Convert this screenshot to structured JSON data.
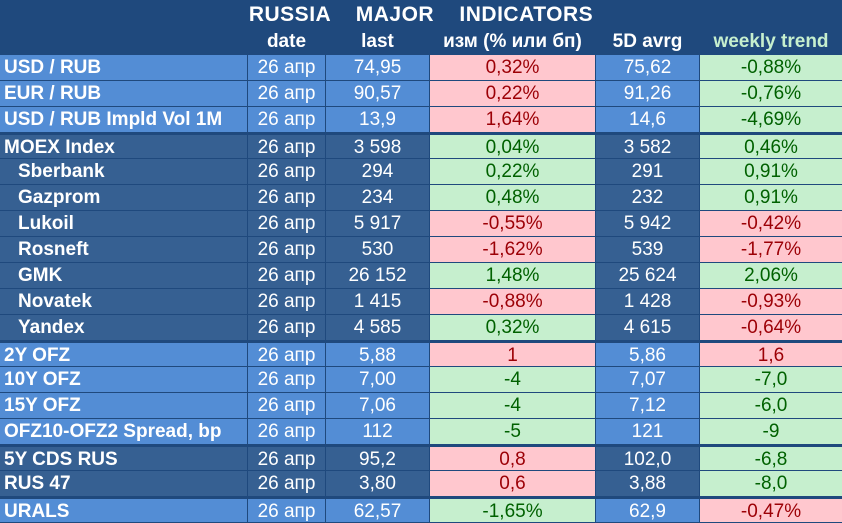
{
  "title": "RUSSIA    MAJOR    INDICATORS",
  "headers": {
    "name": "",
    "date": "date",
    "last": "last",
    "chg": "изм (% или бп)",
    "avg": "5D avrg",
    "weekly": "weekly trend"
  },
  "colors": {
    "header_bg": "#1f497d",
    "row_blue_light": "#538dd5",
    "row_blue_dark": "#366092",
    "positive_bg": "#c6efce",
    "positive_text": "#006100",
    "negative_bg": "#ffc7ce",
    "negative_text": "#9c0006"
  },
  "rows": [
    {
      "name": "USD / RUB",
      "date": "26 апр",
      "last": "74,95",
      "chg": "0,32%",
      "chg_state": "neg",
      "avg": "75,62",
      "weekly": "-0,88%",
      "weekly_state": "pos",
      "shade": "light",
      "indent": false
    },
    {
      "name": "EUR / RUB",
      "date": "26 апр",
      "last": "90,57",
      "chg": "0,22%",
      "chg_state": "neg",
      "avg": "91,26",
      "weekly": "-0,76%",
      "weekly_state": "pos",
      "shade": "light",
      "indent": false
    },
    {
      "name": "USD / RUB Impld Vol 1M",
      "date": "26 апр",
      "last": "13,9",
      "chg": "1,64%",
      "chg_state": "neg",
      "avg": "14,6",
      "weekly": "-4,69%",
      "weekly_state": "pos",
      "shade": "light",
      "indent": false
    },
    {
      "name": "MOEX Index",
      "date": "26 апр",
      "last": "3 598",
      "chg": "0,04%",
      "chg_state": "pos",
      "avg": "3 582",
      "weekly": "0,46%",
      "weekly_state": "pos",
      "shade": "dark",
      "indent": false
    },
    {
      "name": "Sberbank",
      "date": "26 апр",
      "last": "294",
      "chg": "0,22%",
      "chg_state": "pos",
      "avg": "291",
      "weekly": "0,91%",
      "weekly_state": "pos",
      "shade": "dark",
      "indent": true
    },
    {
      "name": "Gazprom",
      "date": "26 апр",
      "last": "234",
      "chg": "0,48%",
      "chg_state": "pos",
      "avg": "232",
      "weekly": "0,91%",
      "weekly_state": "pos",
      "shade": "dark",
      "indent": true
    },
    {
      "name": "Lukoil",
      "date": "26 апр",
      "last": "5 917",
      "chg": "-0,55%",
      "chg_state": "neg",
      "avg": "5 942",
      "weekly": "-0,42%",
      "weekly_state": "neg",
      "shade": "dark",
      "indent": true
    },
    {
      "name": "Rosneft",
      "date": "26 апр",
      "last": "530",
      "chg": "-1,62%",
      "chg_state": "neg",
      "avg": "539",
      "weekly": "-1,77%",
      "weekly_state": "neg",
      "shade": "dark",
      "indent": true
    },
    {
      "name": "GMK",
      "date": "26 апр",
      "last": "26 152",
      "chg": "1,48%",
      "chg_state": "pos",
      "avg": "25 624",
      "weekly": "2,06%",
      "weekly_state": "pos",
      "shade": "dark",
      "indent": true
    },
    {
      "name": "Novatek",
      "date": "26 апр",
      "last": "1 415",
      "chg": "-0,88%",
      "chg_state": "neg",
      "avg": "1 428",
      "weekly": "-0,93%",
      "weekly_state": "neg",
      "shade": "dark",
      "indent": true
    },
    {
      "name": "Yandex",
      "date": "26 апр",
      "last": "4 585",
      "chg": "0,32%",
      "chg_state": "pos",
      "avg": "4 615",
      "weekly": "-0,64%",
      "weekly_state": "neg",
      "shade": "dark",
      "indent": true
    },
    {
      "name": "2Y OFZ",
      "date": "26 апр",
      "last": "5,88",
      "chg": "1",
      "chg_state": "neg",
      "avg": "5,86",
      "weekly": "1,6",
      "weekly_state": "neg",
      "shade": "light",
      "indent": false
    },
    {
      "name": "10Y OFZ",
      "date": "26 апр",
      "last": "7,00",
      "chg": "-4",
      "chg_state": "pos",
      "avg": "7,07",
      "weekly": "-7,0",
      "weekly_state": "pos",
      "shade": "light",
      "indent": false
    },
    {
      "name": "15Y OFZ",
      "date": "26 апр",
      "last": "7,06",
      "chg": "-4",
      "chg_state": "pos",
      "avg": "7,12",
      "weekly": "-6,0",
      "weekly_state": "pos",
      "shade": "light",
      "indent": false
    },
    {
      "name": "OFZ10-OFZ2 Spread, bp",
      "date": "26 апр",
      "last": "112",
      "chg": "-5",
      "chg_state": "pos",
      "avg": "121",
      "weekly": "-9",
      "weekly_state": "pos",
      "shade": "light",
      "indent": false
    },
    {
      "name": "5Y CDS RUS",
      "date": "26 апр",
      "last": "95,2",
      "chg": "0,8",
      "chg_state": "neg",
      "avg": "102,0",
      "weekly": "-6,8",
      "weekly_state": "pos",
      "shade": "dark",
      "indent": false
    },
    {
      "name": "RUS 47",
      "date": "26 апр",
      "last": "3,80",
      "chg": "0,6",
      "chg_state": "neg",
      "avg": "3,88",
      "weekly": "-8,0",
      "weekly_state": "pos",
      "shade": "dark",
      "indent": false
    },
    {
      "name": "URALS",
      "date": "26 апр",
      "last": "62,57",
      "chg": "-1,65%",
      "chg_state": "pos",
      "avg": "62,9",
      "weekly": "-0,47%",
      "weekly_state": "neg",
      "shade": "light",
      "indent": false
    }
  ]
}
